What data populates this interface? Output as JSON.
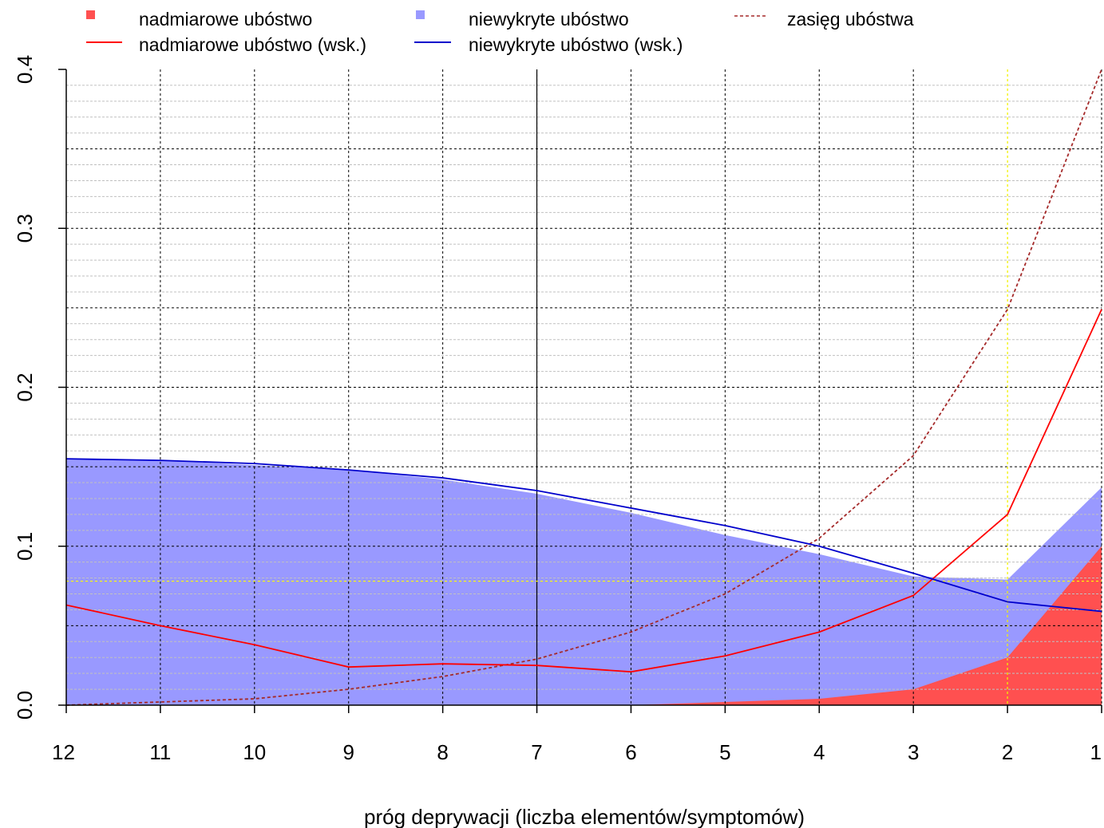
{
  "chart_data": {
    "type": "line",
    "title": "",
    "xlabel": "próg deprywacji (liczba elementów/symptomów)",
    "ylabel": "",
    "x": [
      12,
      11,
      10,
      9,
      8,
      7,
      6,
      5,
      4,
      3,
      2,
      1
    ],
    "x_reversed": true,
    "xlim": [
      12,
      1
    ],
    "ylim": [
      0,
      0.4
    ],
    "x_ticks": [
      "12",
      "11",
      "10",
      "9",
      "8",
      "7",
      "6",
      "5",
      "4",
      "3",
      "2",
      "1"
    ],
    "y_ticks": [
      "0.0",
      "0.1",
      "0.2",
      "0.3",
      "0.4"
    ],
    "y_tick_values": [
      0,
      0.1,
      0.2,
      0.3,
      0.4
    ],
    "grid": true,
    "legend_position": "top",
    "series": [
      {
        "name": "nadmiarowe ubóstwo",
        "kind": "area",
        "color": "#ff5050",
        "values": [
          0.0,
          0.0,
          0.0,
          0.0,
          0.0,
          0.0,
          0.0,
          0.002,
          0.004,
          0.01,
          0.03,
          0.1
        ]
      },
      {
        "name": "niewykryte ubóstwo",
        "kind": "area",
        "color": "#9999ff",
        "values": [
          0.155,
          0.154,
          0.151,
          0.148,
          0.142,
          0.133,
          0.121,
          0.107,
          0.095,
          0.081,
          0.079,
          0.137
        ]
      },
      {
        "name": "zasięg ubóstwa",
        "kind": "line",
        "dashed": true,
        "color": "#a52a2a",
        "values": [
          0.0,
          0.002,
          0.004,
          0.01,
          0.018,
          0.029,
          0.046,
          0.07,
          0.105,
          0.157,
          0.249,
          0.4
        ]
      },
      {
        "name": "nadmiarowe ubóstwo (wsk.)",
        "kind": "line",
        "color": "#ff0000",
        "values": [
          0.063,
          0.05,
          0.038,
          0.024,
          0.026,
          0.025,
          0.021,
          0.031,
          0.046,
          0.069,
          0.12,
          0.249
        ]
      },
      {
        "name": "niewykryte ubóstwo (wsk.)",
        "kind": "line",
        "color": "#0000cc",
        "values": [
          0.155,
          0.154,
          0.152,
          0.148,
          0.143,
          0.135,
          0.124,
          0.113,
          0.1,
          0.083,
          0.065,
          0.059
        ]
      }
    ],
    "reference_lines": {
      "vertical": [
        {
          "x": 7,
          "color": "#000000"
        },
        {
          "x": 2,
          "color": "#ffff00"
        }
      ],
      "horizontal": [
        {
          "y": 0.078,
          "color": "#ffff00"
        }
      ]
    },
    "colors": {
      "grid": "#000000",
      "fine_grid": "#c0c0c0"
    }
  }
}
